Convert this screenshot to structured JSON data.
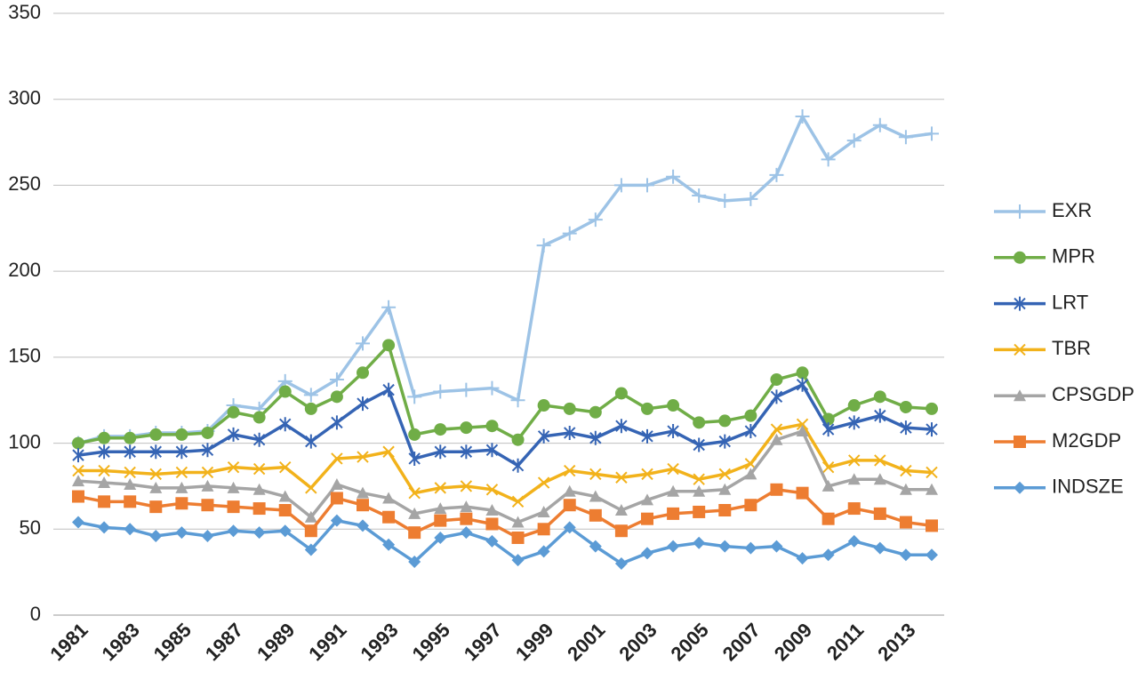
{
  "chart_data": {
    "type": "line",
    "categories": [
      "1981",
      null,
      "1983",
      null,
      "1985",
      null,
      "1987",
      null,
      "1989",
      null,
      "1991",
      null,
      "1993",
      null,
      "1995",
      null,
      "1997",
      null,
      "1999",
      null,
      "2001",
      null,
      "2003",
      null,
      "2005",
      null,
      "2007",
      null,
      "2009",
      null,
      "2011",
      null,
      "2013",
      null
    ],
    "ylim": [
      0,
      350
    ],
    "yticks": [
      0,
      50,
      100,
      150,
      200,
      250,
      300,
      350
    ],
    "grid": true,
    "legend": "right",
    "series": [
      {
        "name": "EXR",
        "color": "#9dc3e6",
        "marker": "plus",
        "values": [
          100,
          104,
          104,
          106,
          106,
          107,
          122,
          120,
          136,
          128,
          137,
          158,
          179,
          127,
          130,
          131,
          132,
          125,
          215,
          222,
          230,
          250,
          250,
          255,
          244,
          241,
          242,
          256,
          290,
          265,
          276,
          285,
          278,
          280
        ]
      },
      {
        "name": "MPR",
        "color": "#70ad47",
        "marker": "circle",
        "values": [
          100,
          103,
          103,
          105,
          105,
          106,
          118,
          115,
          130,
          120,
          127,
          141,
          157,
          105,
          108,
          109,
          110,
          102,
          122,
          120,
          118,
          129,
          120,
          122,
          112,
          113,
          116,
          137,
          141,
          114,
          122,
          127,
          121,
          120
        ]
      },
      {
        "name": "LRT",
        "color": "#3564b4",
        "marker": "asterisk",
        "values": [
          93,
          95,
          95,
          95,
          95,
          96,
          105,
          102,
          111,
          101,
          112,
          123,
          131,
          91,
          95,
          95,
          96,
          87,
          104,
          106,
          103,
          110,
          104,
          107,
          99,
          101,
          107,
          127,
          134,
          108,
          112,
          116,
          109,
          108
        ]
      },
      {
        "name": "TBR",
        "color": "#f2b21b",
        "marker": "x",
        "values": [
          84,
          84,
          83,
          82,
          83,
          83,
          86,
          85,
          86,
          74,
          91,
          92,
          95,
          71,
          74,
          75,
          73,
          66,
          77,
          84,
          82,
          80,
          82,
          85,
          79,
          82,
          88,
          108,
          111,
          86,
          90,
          90,
          84,
          83
        ]
      },
      {
        "name": "CPSGDP",
        "color": "#a5a5a5",
        "marker": "triangle",
        "values": [
          78,
          77,
          76,
          74,
          74,
          75,
          74,
          73,
          69,
          57,
          76,
          71,
          68,
          59,
          62,
          63,
          61,
          54,
          60,
          72,
          69,
          61,
          67,
          72,
          72,
          73,
          82,
          102,
          107,
          75,
          79,
          79,
          73,
          73
        ]
      },
      {
        "name": "M2GDP",
        "color": "#ed7d31",
        "marker": "square",
        "values": [
          69,
          66,
          66,
          63,
          65,
          64,
          63,
          62,
          61,
          49,
          68,
          64,
          57,
          48,
          55,
          56,
          53,
          45,
          50,
          64,
          58,
          49,
          56,
          59,
          60,
          61,
          64,
          73,
          71,
          56,
          62,
          59,
          54,
          52
        ]
      },
      {
        "name": "INDSZE",
        "color": "#5b9bd5",
        "marker": "diamond",
        "values": [
          54,
          51,
          50,
          46,
          48,
          46,
          49,
          48,
          49,
          38,
          55,
          52,
          41,
          31,
          45,
          48,
          43,
          32,
          37,
          51,
          40,
          30,
          36,
          40,
          42,
          40,
          39,
          40,
          33,
          35,
          43,
          39,
          35,
          35
        ]
      }
    ]
  }
}
